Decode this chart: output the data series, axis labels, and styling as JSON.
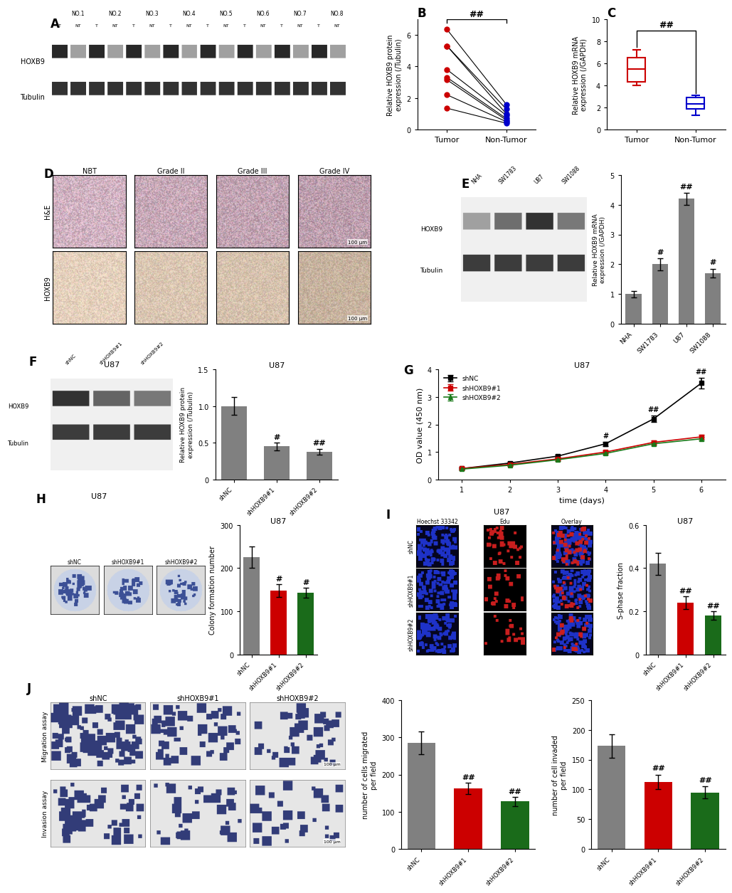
{
  "panel_B": {
    "tumor_values": [
      1.35,
      2.2,
      3.15,
      3.3,
      3.8,
      5.3,
      5.3,
      6.35
    ],
    "non_tumor_values": [
      0.4,
      0.5,
      0.6,
      0.7,
      0.9,
      1.0,
      1.3,
      1.6
    ],
    "ylabel": "Relative HOXB9 protein\nexpression (/Tubulin)",
    "xlabels": [
      "Tumor",
      "Non-Tumor"
    ],
    "ylim": [
      0,
      7
    ],
    "yticks": [
      0,
      2,
      4,
      6
    ],
    "title": "B",
    "sig": "##",
    "tumor_color": "#cc0000",
    "nontumor_color": "#0000cc"
  },
  "panel_C": {
    "tumor_box": {
      "min": 4.0,
      "q1": 4.3,
      "median": 5.5,
      "q3": 6.5,
      "max": 7.2
    },
    "nontumor_box": {
      "min": 1.3,
      "q1": 1.9,
      "median": 2.3,
      "q3": 2.9,
      "max": 3.1
    },
    "ylabel": "Relative HOXB9 mRNA\nexpression (/GAPDH)",
    "xlabels": [
      "Tumor",
      "Non-Tumor"
    ],
    "ylim": [
      0,
      10
    ],
    "yticks": [
      0,
      2,
      4,
      6,
      8,
      10
    ],
    "title": "C",
    "sig": "##",
    "tumor_color": "#cc0000",
    "nontumor_color": "#0000cc"
  },
  "panel_E_bar": {
    "categories": [
      "NHA",
      "SW1783",
      "U87",
      "SW1088"
    ],
    "values": [
      1.0,
      2.0,
      4.2,
      1.7
    ],
    "errors": [
      0.1,
      0.2,
      0.2,
      0.15
    ],
    "ylabel": "Relative HOXB9 mRNA\nexpression (/GAPDH)",
    "ylim": [
      0,
      5
    ],
    "yticks": [
      0,
      1,
      2,
      3,
      4,
      5
    ],
    "sig_labels": [
      "",
      "#",
      "##",
      "#"
    ],
    "bar_color": "#808080",
    "title": "E"
  },
  "panel_F_bar": {
    "categories": [
      "shNC",
      "shHOXB9#1",
      "shHOXB9#2"
    ],
    "values": [
      1.0,
      0.45,
      0.38
    ],
    "errors": [
      0.12,
      0.05,
      0.04
    ],
    "ylabel": "Relative HOXB9 protein\nexpression (/Tubulin)",
    "ylim": [
      0,
      1.5
    ],
    "yticks": [
      0,
      0.5,
      1.0,
      1.5
    ],
    "sig_labels": [
      "",
      "#",
      "##"
    ],
    "bar_color": "#808080",
    "title": "F",
    "title_right": "U87"
  },
  "panel_G": {
    "days": [
      1,
      2,
      3,
      4,
      5,
      6
    ],
    "shNC": [
      0.4,
      0.6,
      0.85,
      1.3,
      2.2,
      3.5
    ],
    "shHOXB91": [
      0.4,
      0.55,
      0.75,
      1.0,
      1.35,
      1.55
    ],
    "shHOXB92": [
      0.38,
      0.52,
      0.72,
      0.95,
      1.3,
      1.48
    ],
    "shNC_err": [
      0.03,
      0.04,
      0.05,
      0.08,
      0.12,
      0.2
    ],
    "shHOXB91_err": [
      0.03,
      0.03,
      0.04,
      0.05,
      0.06,
      0.07
    ],
    "shHOXB92_err": [
      0.03,
      0.03,
      0.04,
      0.05,
      0.06,
      0.07
    ],
    "ylabel": "OD value (450 nm)",
    "xlabel": "time (days)",
    "ylim": [
      0,
      4
    ],
    "yticks": [
      0,
      1,
      2,
      3,
      4
    ],
    "title": "G",
    "subtitle": "U87",
    "sig_days": [
      4,
      5,
      6
    ],
    "sig_labels": [
      "#",
      "##",
      "##"
    ],
    "colors": {
      "shNC": "#000000",
      "shHOXB91": "#1a7a1a",
      "shHOXB92": "#cc0000"
    }
  },
  "panel_H_bar": {
    "categories": [
      "shNC",
      "shHOXB9#1",
      "shHOXB9#2"
    ],
    "values": [
      225,
      148,
      143
    ],
    "errors": [
      25,
      15,
      12
    ],
    "ylabel": "Colony formation number",
    "ylim": [
      0,
      300
    ],
    "yticks": [
      0,
      100,
      200,
      300
    ],
    "sig_labels": [
      "",
      "#",
      "#"
    ],
    "colors": [
      "#808080",
      "#cc0000",
      "#1a6b1a"
    ],
    "title": "H",
    "subtitle": "U87"
  },
  "panel_I_bar": {
    "categories": [
      "shNC",
      "shHOXB9#1",
      "shHOXB9#2"
    ],
    "values": [
      0.42,
      0.24,
      0.18
    ],
    "errors": [
      0.05,
      0.03,
      0.02
    ],
    "ylabel": "S-phase fraction",
    "ylim": [
      0,
      0.6
    ],
    "yticks": [
      0,
      0.2,
      0.4,
      0.6
    ],
    "sig_labels": [
      "",
      "##",
      "##"
    ],
    "colors": [
      "#808080",
      "#cc0000",
      "#1a6b1a"
    ],
    "title": "I",
    "subtitle": "U87"
  },
  "panel_J_mig": {
    "categories": [
      "shNC",
      "shHOXB9#1",
      "shHOXB9#2"
    ],
    "values": [
      285,
      163,
      128
    ],
    "errors": [
      30,
      15,
      12
    ],
    "ylabel": "number of cells migrated\nper field",
    "ylim": [
      0,
      400
    ],
    "yticks": [
      0,
      100,
      200,
      300,
      400
    ],
    "sig_labels": [
      "",
      "##",
      "##"
    ],
    "colors": [
      "#808080",
      "#cc0000",
      "#1a6b1a"
    ]
  },
  "panel_J_inv": {
    "categories": [
      "shNC",
      "shHOXB9#1",
      "shHOXB9#2"
    ],
    "values": [
      173,
      113,
      95
    ],
    "errors": [
      20,
      12,
      10
    ],
    "ylabel": "number of cell invaded\nper field",
    "ylim": [
      0,
      250
    ],
    "yticks": [
      0,
      50,
      100,
      150,
      200,
      250
    ],
    "sig_labels": [
      "",
      "##",
      "##"
    ],
    "colors": [
      "#808080",
      "#cc0000",
      "#1a6b1a"
    ]
  }
}
